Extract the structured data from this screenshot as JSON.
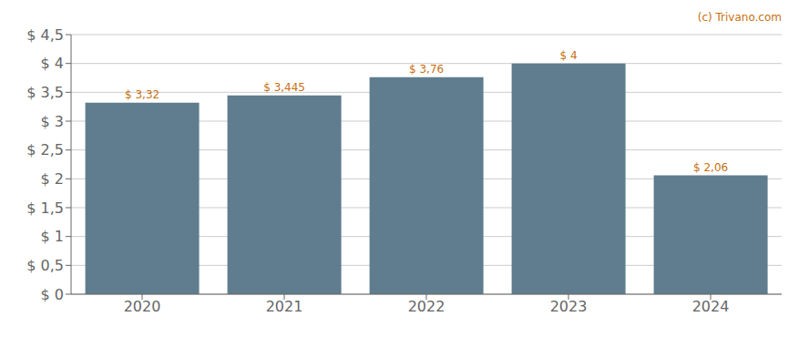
{
  "chart_data": {
    "type": "bar",
    "categories": [
      "2020",
      "2021",
      "2022",
      "2023",
      "2024"
    ],
    "values": [
      3.32,
      3.445,
      3.76,
      4.0,
      2.06
    ],
    "value_labels": [
      "$ 3,32",
      "$ 3,445",
      "$ 3,76",
      "$ 4",
      "$ 2,06"
    ],
    "data_labels": true,
    "color": "#5f7d8e",
    "ylim": [
      0,
      4.5
    ],
    "yticks": [
      {
        "value": 0,
        "label": "$ 0"
      },
      {
        "value": 0.5,
        "label": "$ 0,5"
      },
      {
        "value": 1.0,
        "label": "$ 1"
      },
      {
        "value": 1.5,
        "label": "$ 1,5"
      },
      {
        "value": 2.0,
        "label": "$ 2"
      },
      {
        "value": 2.5,
        "label": "$ 2,5"
      },
      {
        "value": 3.0,
        "label": "$ 3"
      },
      {
        "value": 3.5,
        "label": "$ 3,5"
      },
      {
        "value": 4.0,
        "label": "$ 4"
      },
      {
        "value": 4.5,
        "label": "$ 4,5"
      }
    ],
    "grid": true,
    "annotation": "(c) Trivano.com"
  }
}
